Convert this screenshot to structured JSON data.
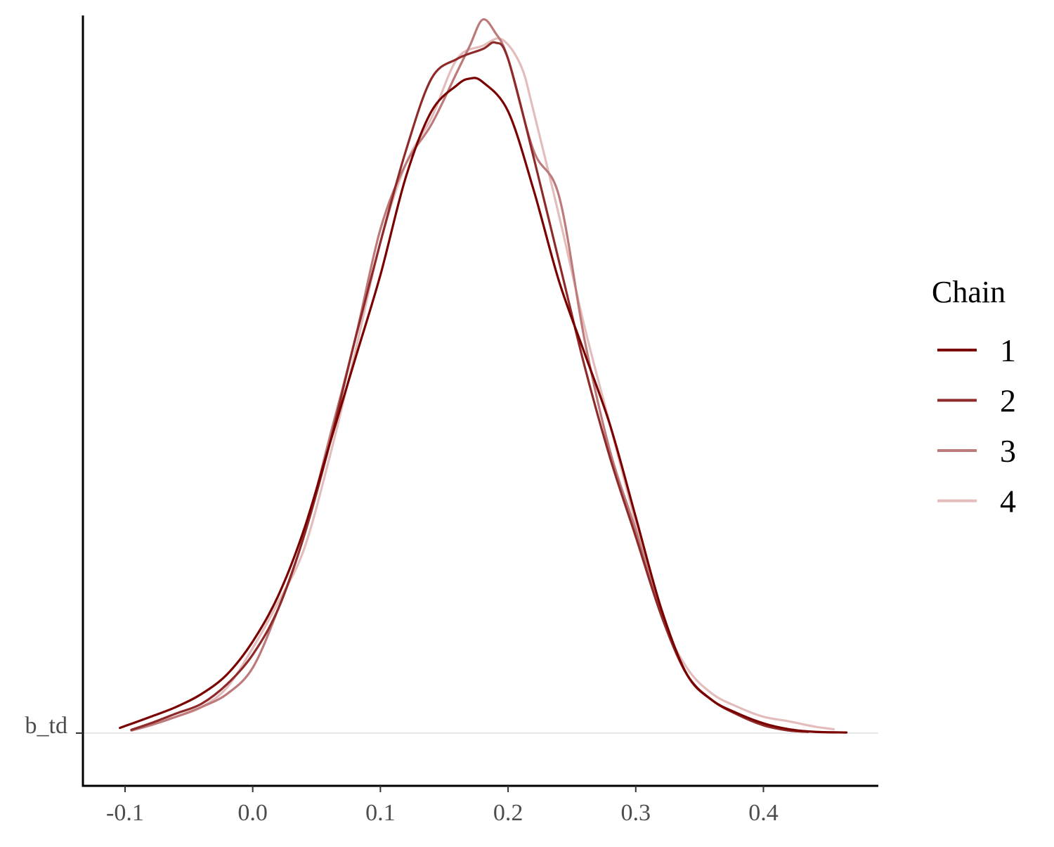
{
  "chart_data": {
    "type": "line",
    "title": "",
    "xlabel": "",
    "ylabel": "",
    "xlim": [
      -0.133,
      0.49
    ],
    "x_ticks": [
      -0.1,
      0.0,
      0.1,
      0.2,
      0.3,
      0.4
    ],
    "x_tick_labels": [
      "-0.1",
      "0.0",
      "0.1",
      "0.2",
      "0.3",
      "0.4"
    ],
    "y_tick_labels": [
      "b_td"
    ],
    "grid": false,
    "baseline_rule": true,
    "legend": {
      "title": "Chain",
      "position": "right",
      "entries": [
        "1",
        "2",
        "3",
        "4"
      ]
    },
    "series": [
      {
        "name": "1",
        "color": "#7a0000",
        "x": [
          -0.104,
          -0.08,
          -0.06,
          -0.04,
          -0.02,
          0.0,
          0.02,
          0.04,
          0.06,
          0.08,
          0.1,
          0.12,
          0.14,
          0.16,
          0.17,
          0.18,
          0.2,
          0.22,
          0.24,
          0.26,
          0.28,
          0.3,
          0.32,
          0.34,
          0.36,
          0.38,
          0.4,
          0.42,
          0.44,
          0.465
        ],
        "y": [
          0.008,
          0.025,
          0.04,
          0.06,
          0.09,
          0.14,
          0.21,
          0.31,
          0.44,
          0.57,
          0.7,
          0.85,
          0.95,
          0.99,
          1.0,
          0.995,
          0.95,
          0.83,
          0.69,
          0.58,
          0.47,
          0.33,
          0.19,
          0.09,
          0.05,
          0.03,
          0.015,
          0.006,
          0.002,
          0.001
        ]
      },
      {
        "name": "2",
        "color": "#8f2a2a",
        "x": [
          -0.095,
          -0.08,
          -0.06,
          -0.04,
          -0.02,
          0.0,
          0.02,
          0.04,
          0.06,
          0.08,
          0.1,
          0.12,
          0.14,
          0.16,
          0.18,
          0.19,
          0.2,
          0.22,
          0.24,
          0.26,
          0.28,
          0.3,
          0.32,
          0.34,
          0.36,
          0.38,
          0.4,
          0.42,
          0.435
        ],
        "y": [
          0.005,
          0.015,
          0.03,
          0.045,
          0.075,
          0.12,
          0.19,
          0.3,
          0.44,
          0.6,
          0.75,
          0.89,
          1.0,
          1.03,
          1.045,
          1.055,
          1.03,
          0.88,
          0.72,
          0.56,
          0.42,
          0.3,
          0.18,
          0.09,
          0.05,
          0.028,
          0.012,
          0.004,
          0.002
        ]
      },
      {
        "name": "3",
        "color": "#bd7a7a",
        "x": [
          -0.095,
          -0.08,
          -0.06,
          -0.04,
          -0.02,
          0.0,
          0.02,
          0.04,
          0.06,
          0.08,
          0.1,
          0.12,
          0.14,
          0.16,
          0.17,
          0.18,
          0.19,
          0.2,
          0.22,
          0.24,
          0.26,
          0.28,
          0.3,
          0.32,
          0.34,
          0.36,
          0.38,
          0.4,
          0.42,
          0.435
        ],
        "y": [
          0.004,
          0.012,
          0.025,
          0.04,
          0.06,
          0.1,
          0.19,
          0.3,
          0.45,
          0.6,
          0.77,
          0.87,
          0.93,
          1.01,
          1.05,
          1.09,
          1.07,
          1.03,
          0.89,
          0.82,
          0.6,
          0.43,
          0.31,
          0.18,
          0.09,
          0.05,
          0.03,
          0.012,
          0.004,
          0.002
        ]
      },
      {
        "name": "4",
        "color": "#e3bcbc",
        "x": [
          -0.095,
          -0.08,
          -0.06,
          -0.04,
          -0.02,
          0.0,
          0.02,
          0.04,
          0.06,
          0.08,
          0.1,
          0.12,
          0.14,
          0.16,
          0.18,
          0.195,
          0.21,
          0.22,
          0.24,
          0.26,
          0.28,
          0.3,
          0.32,
          0.34,
          0.36,
          0.38,
          0.4,
          0.42,
          0.44,
          0.455
        ],
        "y": [
          0.005,
          0.015,
          0.025,
          0.04,
          0.07,
          0.13,
          0.2,
          0.28,
          0.42,
          0.58,
          0.75,
          0.87,
          0.94,
          1.03,
          1.05,
          1.06,
          1.02,
          0.95,
          0.79,
          0.62,
          0.47,
          0.32,
          0.18,
          0.1,
          0.06,
          0.04,
          0.025,
          0.018,
          0.01,
          0.006
        ]
      }
    ]
  }
}
